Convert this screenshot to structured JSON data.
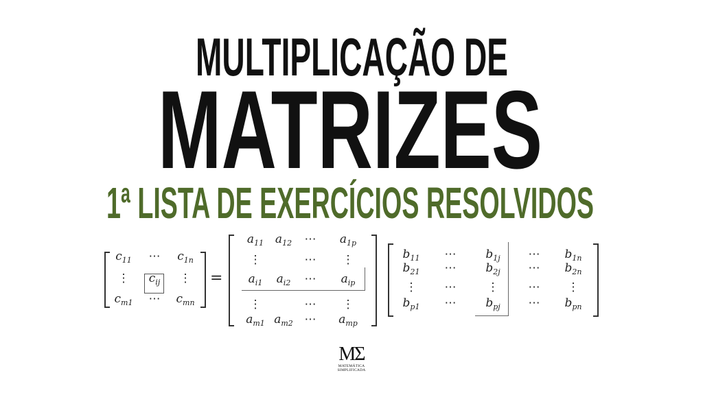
{
  "title": {
    "line1": "MULTIPLICAÇÃO DE",
    "line2": "MATRIZES",
    "subtitle": "1ª LISTA DE EXERCÍCIOS RESOLVIDOS",
    "colors": {
      "title": "#111111",
      "subtitle": "#4f6b2a"
    }
  },
  "equation": {
    "equals": "=",
    "matrix_c": [
      [
        {
          "base": "c",
          "sub": "11"
        },
        {
          "base": "⋯"
        },
        {
          "base": "c",
          "sub": "1n"
        }
      ],
      [
        {
          "base": "⋮"
        },
        {
          "base": "c",
          "sub": "ij"
        },
        {
          "base": "⋮"
        }
      ],
      [
        {
          "base": "c",
          "sub": "m1"
        },
        {
          "base": "⋯"
        },
        {
          "base": "c",
          "sub": "mn"
        }
      ]
    ],
    "matrix_a": [
      [
        {
          "base": "a",
          "sub": "11"
        },
        {
          "base": "a",
          "sub": "12"
        },
        {
          "base": "⋯"
        },
        {
          "base": "a",
          "sub": "1p"
        }
      ],
      [
        {
          "base": "⋮"
        },
        null,
        {
          "base": "⋯"
        },
        {
          "base": "⋮"
        }
      ],
      [
        {
          "base": "a",
          "sub": "i1"
        },
        {
          "base": "a",
          "sub": "i2"
        },
        {
          "base": "⋯"
        },
        {
          "base": "a",
          "sub": "ip"
        }
      ],
      [
        {
          "base": "⋮"
        },
        null,
        {
          "base": "⋯"
        },
        {
          "base": "⋮"
        }
      ],
      [
        {
          "base": "a",
          "sub": "m1"
        },
        {
          "base": "a",
          "sub": "m2"
        },
        {
          "base": "⋯"
        },
        {
          "base": "a",
          "sub": "mp"
        }
      ]
    ],
    "matrix_b": [
      [
        {
          "base": "b",
          "sub": "11"
        },
        {
          "base": "⋯"
        },
        {
          "base": "b",
          "sub": "1j"
        },
        {
          "base": "⋯"
        },
        {
          "base": "b",
          "sub": "1n"
        }
      ],
      [
        {
          "base": "b",
          "sub": "21"
        },
        {
          "base": "⋯"
        },
        {
          "base": "b",
          "sub": "2j"
        },
        {
          "base": "⋯"
        },
        {
          "base": "b",
          "sub": "2n"
        }
      ],
      [
        {
          "base": "⋮"
        },
        {
          "base": "⋯"
        },
        {
          "base": "⋮"
        },
        {
          "base": "⋯"
        },
        {
          "base": "⋮"
        }
      ],
      [
        {
          "base": "b",
          "sub": "p1"
        },
        {
          "base": "⋯"
        },
        {
          "base": "b",
          "sub": "pj"
        },
        {
          "base": "⋯"
        },
        {
          "base": "b",
          "sub": "pn"
        }
      ]
    ]
  },
  "logo": {
    "mark": "MΣ",
    "line1": "MATEMÁTICA",
    "line2": "SIMPLIFICADA"
  }
}
